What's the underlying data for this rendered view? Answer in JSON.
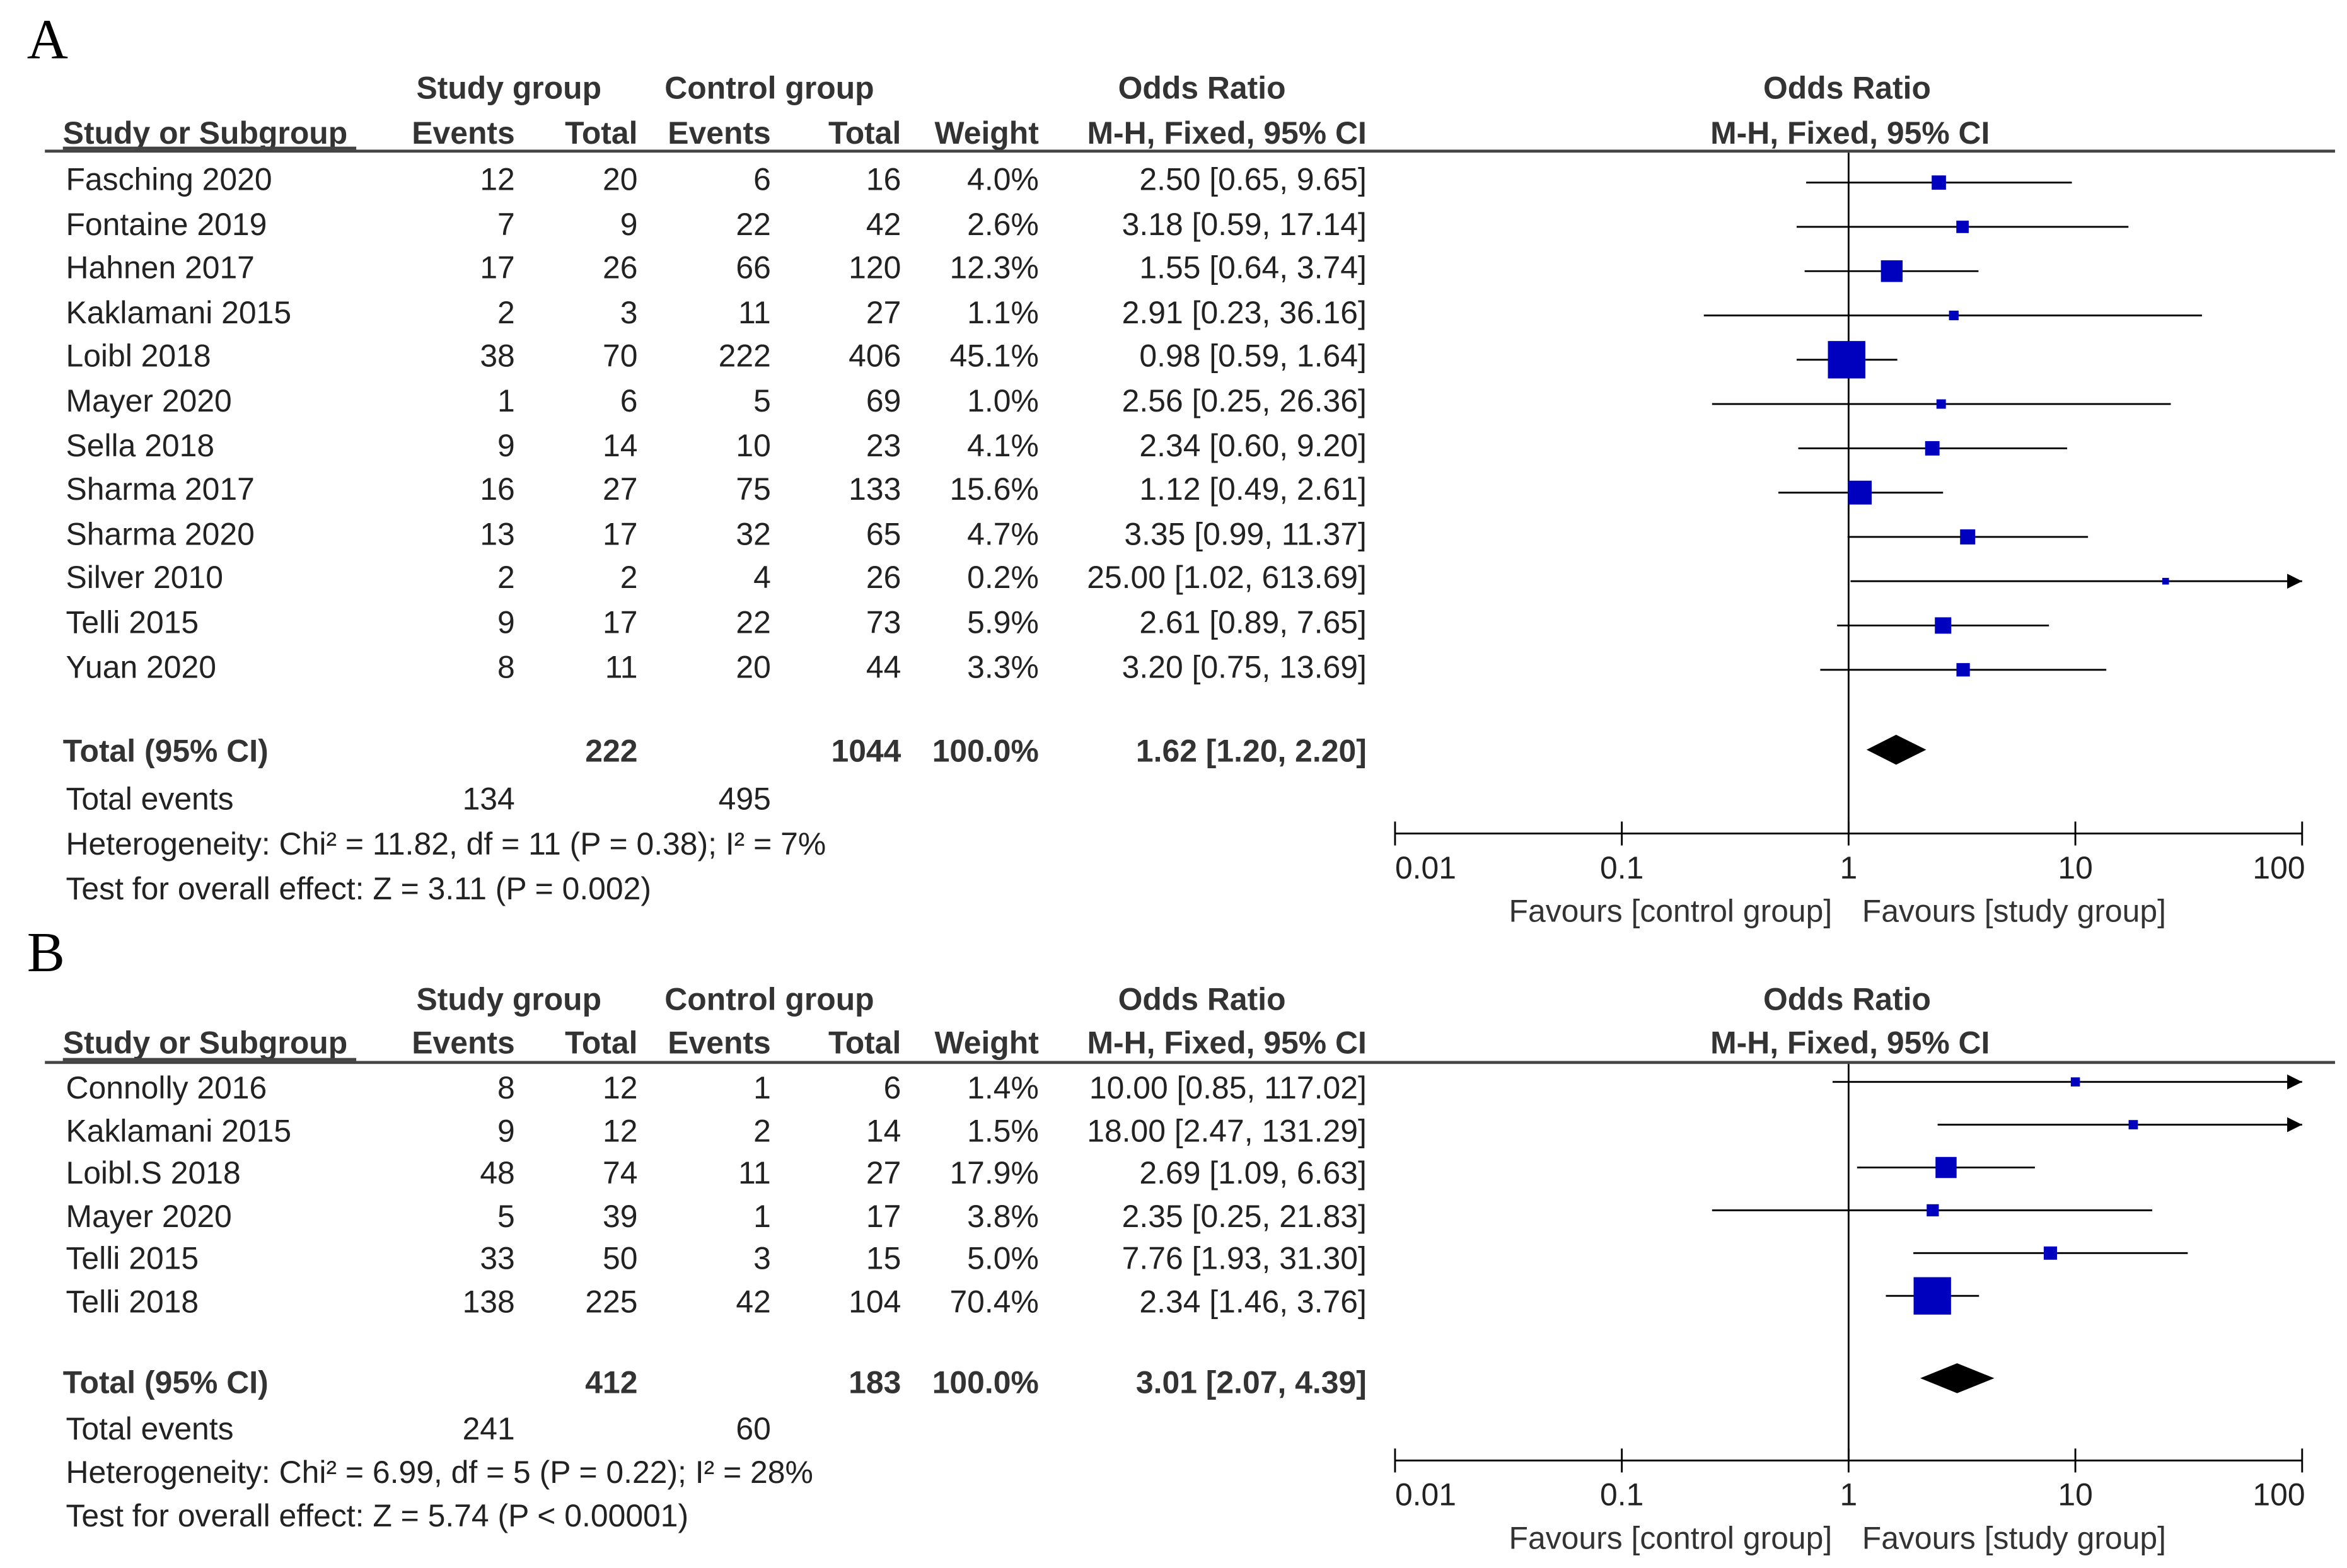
{
  "colors": {
    "marker": "#0000bf",
    "diamond": "#000000",
    "line": "#000000",
    "text": "#222222"
  },
  "header": {
    "study_group": "Study group",
    "control_group": "Control group",
    "odds_ratio": "Odds Ratio",
    "study_or_subgroup": "Study or Subgroup",
    "events": "Events",
    "total": "Total",
    "weight": "Weight",
    "method": "M-H, Fixed, 95% CI",
    "plot_title": "Odds Ratio",
    "plot_method": "M-H, Fixed, 95% CI"
  },
  "chart_data": [
    {
      "type": "forest",
      "panel_label": "A",
      "x_scale": "log",
      "x_ticks": [
        0.01,
        0.1,
        1,
        10,
        100
      ],
      "x_tick_labels": [
        "0.01",
        "0.1",
        "1",
        "10",
        "100"
      ],
      "favours_left": "Favours [control group]",
      "favours_right": "Favours [study group]",
      "studies": [
        {
          "name": "Fasching 2020",
          "ev_s": "12",
          "tot_s": "20",
          "ev_c": "6",
          "tot_c": "16",
          "weight_label": "4.0%",
          "ci_label": "2.50 [0.65, 9.65]",
          "or": 2.5,
          "lo": 0.65,
          "hi": 9.65,
          "weight": 4.0
        },
        {
          "name": "Fontaine 2019",
          "ev_s": "7",
          "tot_s": "9",
          "ev_c": "22",
          "tot_c": "42",
          "weight_label": "2.6%",
          "ci_label": "3.18 [0.59, 17.14]",
          "or": 3.18,
          "lo": 0.59,
          "hi": 17.14,
          "weight": 2.6
        },
        {
          "name": "Hahnen 2017",
          "ev_s": "17",
          "tot_s": "26",
          "ev_c": "66",
          "tot_c": "120",
          "weight_label": "12.3%",
          "ci_label": "1.55 [0.64, 3.74]",
          "or": 1.55,
          "lo": 0.64,
          "hi": 3.74,
          "weight": 12.3
        },
        {
          "name": "Kaklamani 2015",
          "ev_s": "2",
          "tot_s": "3",
          "ev_c": "11",
          "tot_c": "27",
          "weight_label": "1.1%",
          "ci_label": "2.91 [0.23, 36.16]",
          "or": 2.91,
          "lo": 0.23,
          "hi": 36.16,
          "weight": 1.1
        },
        {
          "name": "Loibl 2018",
          "ev_s": "38",
          "tot_s": "70",
          "ev_c": "222",
          "tot_c": "406",
          "weight_label": "45.1%",
          "ci_label": "0.98 [0.59, 1.64]",
          "or": 0.98,
          "lo": 0.59,
          "hi": 1.64,
          "weight": 45.1
        },
        {
          "name": "Mayer 2020",
          "ev_s": "1",
          "tot_s": "6",
          "ev_c": "5",
          "tot_c": "69",
          "weight_label": "1.0%",
          "ci_label": "2.56 [0.25, 26.36]",
          "or": 2.56,
          "lo": 0.25,
          "hi": 26.36,
          "weight": 1.0
        },
        {
          "name": "Sella 2018",
          "ev_s": "9",
          "tot_s": "14",
          "ev_c": "10",
          "tot_c": "23",
          "weight_label": "4.1%",
          "ci_label": "2.34 [0.60, 9.20]",
          "or": 2.34,
          "lo": 0.6,
          "hi": 9.2,
          "weight": 4.1
        },
        {
          "name": "Sharma 2017",
          "ev_s": "16",
          "tot_s": "27",
          "ev_c": "75",
          "tot_c": "133",
          "weight_label": "15.6%",
          "ci_label": "1.12 [0.49, 2.61]",
          "or": 1.12,
          "lo": 0.49,
          "hi": 2.61,
          "weight": 15.6
        },
        {
          "name": "Sharma 2020",
          "ev_s": "13",
          "tot_s": "17",
          "ev_c": "32",
          "tot_c": "65",
          "weight_label": "4.7%",
          "ci_label": "3.35 [0.99, 11.37]",
          "or": 3.35,
          "lo": 0.99,
          "hi": 11.37,
          "weight": 4.7
        },
        {
          "name": "Silver 2010",
          "ev_s": "2",
          "tot_s": "2",
          "ev_c": "4",
          "tot_c": "26",
          "weight_label": "0.2%",
          "ci_label": "25.00 [1.02, 613.69]",
          "or": 25.0,
          "lo": 1.02,
          "hi": 613.69,
          "weight": 0.2
        },
        {
          "name": "Telli 2015",
          "ev_s": "9",
          "tot_s": "17",
          "ev_c": "22",
          "tot_c": "73",
          "weight_label": "5.9%",
          "ci_label": "2.61 [0.89, 7.65]",
          "or": 2.61,
          "lo": 0.89,
          "hi": 7.65,
          "weight": 5.9
        },
        {
          "name": "Yuan 2020",
          "ev_s": "8",
          "tot_s": "11",
          "ev_c": "20",
          "tot_c": "44",
          "weight_label": "3.3%",
          "ci_label": "3.20 [0.75, 13.69]",
          "or": 3.2,
          "lo": 0.75,
          "hi": 13.69,
          "weight": 3.3
        }
      ],
      "total": {
        "label": "Total (95% CI)",
        "tot_s": "222",
        "tot_c": "1044",
        "weight_label": "100.0%",
        "ci_label": "1.62 [1.20, 2.20]",
        "or": 1.62,
        "lo": 1.2,
        "hi": 2.2
      },
      "total_events": {
        "label": "Total events",
        "s": "134",
        "c": "495"
      },
      "heterogeneity": "Heterogeneity: Chi² = 11.82, df = 11 (P = 0.38); I² = 7%",
      "overall_effect": "Test for overall effect: Z = 3.11 (P = 0.002)"
    },
    {
      "type": "forest",
      "panel_label": "B",
      "x_scale": "log",
      "x_ticks": [
        0.01,
        0.1,
        1,
        10,
        100
      ],
      "x_tick_labels": [
        "0.01",
        "0.1",
        "1",
        "10",
        "100"
      ],
      "favours_left": "Favours [control group]",
      "favours_right": "Favours [study group]",
      "studies": [
        {
          "name": "Connolly 2016",
          "ev_s": "8",
          "tot_s": "12",
          "ev_c": "1",
          "tot_c": "6",
          "weight_label": "1.4%",
          "ci_label": "10.00 [0.85, 117.02]",
          "or": 10.0,
          "lo": 0.85,
          "hi": 117.02,
          "weight": 1.4
        },
        {
          "name": "Kaklamani 2015",
          "ev_s": "9",
          "tot_s": "12",
          "ev_c": "2",
          "tot_c": "14",
          "weight_label": "1.5%",
          "ci_label": "18.00 [2.47, 131.29]",
          "or": 18.0,
          "lo": 2.47,
          "hi": 131.29,
          "weight": 1.5
        },
        {
          "name": "Loibl.S 2018",
          "ev_s": "48",
          "tot_s": "74",
          "ev_c": "11",
          "tot_c": "27",
          "weight_label": "17.9%",
          "ci_label": "2.69 [1.09, 6.63]",
          "or": 2.69,
          "lo": 1.09,
          "hi": 6.63,
          "weight": 17.9
        },
        {
          "name": "Mayer 2020",
          "ev_s": "5",
          "tot_s": "39",
          "ev_c": "1",
          "tot_c": "17",
          "weight_label": "3.8%",
          "ci_label": "2.35 [0.25, 21.83]",
          "or": 2.35,
          "lo": 0.25,
          "hi": 21.83,
          "weight": 3.8
        },
        {
          "name": "Telli 2015",
          "ev_s": "33",
          "tot_s": "50",
          "ev_c": "3",
          "tot_c": "15",
          "weight_label": "5.0%",
          "ci_label": "7.76 [1.93, 31.30]",
          "or": 7.76,
          "lo": 1.93,
          "hi": 31.3,
          "weight": 5.0
        },
        {
          "name": "Telli 2018",
          "ev_s": "138",
          "tot_s": "225",
          "ev_c": "42",
          "tot_c": "104",
          "weight_label": "70.4%",
          "ci_label": "2.34 [1.46, 3.76]",
          "or": 2.34,
          "lo": 1.46,
          "hi": 3.76,
          "weight": 70.4
        }
      ],
      "total": {
        "label": "Total (95% CI)",
        "tot_s": "412",
        "tot_c": "183",
        "weight_label": "100.0%",
        "ci_label": "3.01 [2.07, 4.39]",
        "or": 3.01,
        "lo": 2.07,
        "hi": 4.39
      },
      "total_events": {
        "label": "Total events",
        "s": "241",
        "c": "60"
      },
      "heterogeneity": "Heterogeneity: Chi² = 6.99, df = 5 (P = 0.22); I² = 28%",
      "overall_effect": "Test for overall effect: Z = 5.74 (P < 0.00001)"
    }
  ]
}
